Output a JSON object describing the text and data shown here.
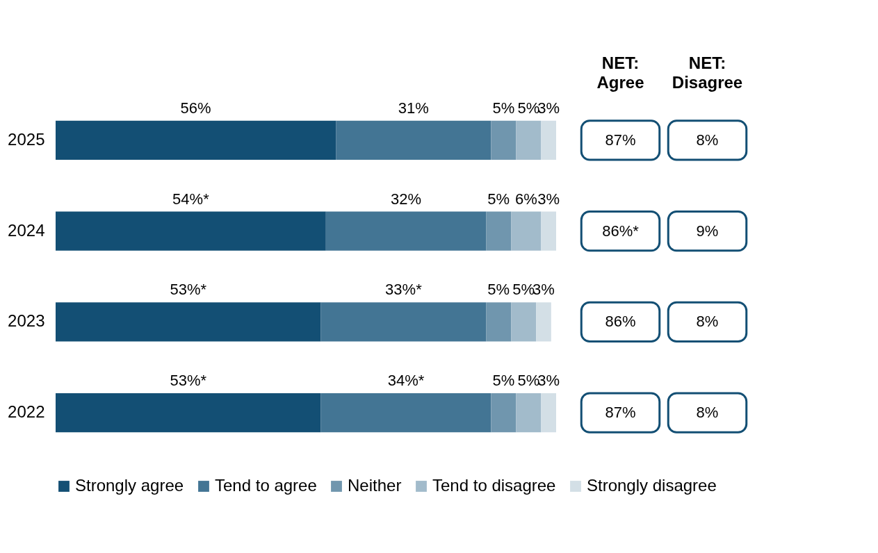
{
  "chart_data": [
    {
      "type": "bar",
      "orientation": "horizontal",
      "stacked": true,
      "legend": "bottom",
      "categories": [
        "2025",
        "2024",
        "2023",
        "2022"
      ],
      "series": [
        {
          "name": "Strongly agree",
          "color": "#134f74",
          "values": [
            56,
            54,
            53,
            53
          ],
          "value_labels": [
            "56%",
            "54%*",
            "53%*",
            "53%*"
          ]
        },
        {
          "name": "Tend to agree",
          "color": "#437594",
          "values": [
            31,
            32,
            33,
            34
          ],
          "value_labels": [
            "31%",
            "32%",
            "33%*",
            "34%*"
          ]
        },
        {
          "name": "Neither",
          "color": "#7096ae",
          "values": [
            5,
            5,
            5,
            5
          ],
          "value_labels": [
            "5%",
            "5%",
            "5%",
            "5%"
          ]
        },
        {
          "name": "Tend to disagree",
          "color": "#a2bbcb",
          "values": [
            5,
            6,
            5,
            5
          ],
          "value_labels": [
            "5%",
            "6%",
            "5%",
            "5%"
          ]
        },
        {
          "name": "Strongly disagree",
          "color": "#d3dfe6",
          "values": [
            3,
            3,
            3,
            3
          ],
          "value_labels": [
            "3%",
            "3%",
            "3%",
            "3%"
          ]
        }
      ]
    },
    {
      "type": "other",
      "categories": [
        "NET: Agree",
        "NET: Disagree"
      ],
      "annotations": [
        "87%",
        "8%",
        "86%*",
        "9%",
        "86%",
        "8%",
        "87%",
        "8%"
      ]
    }
  ]
}
